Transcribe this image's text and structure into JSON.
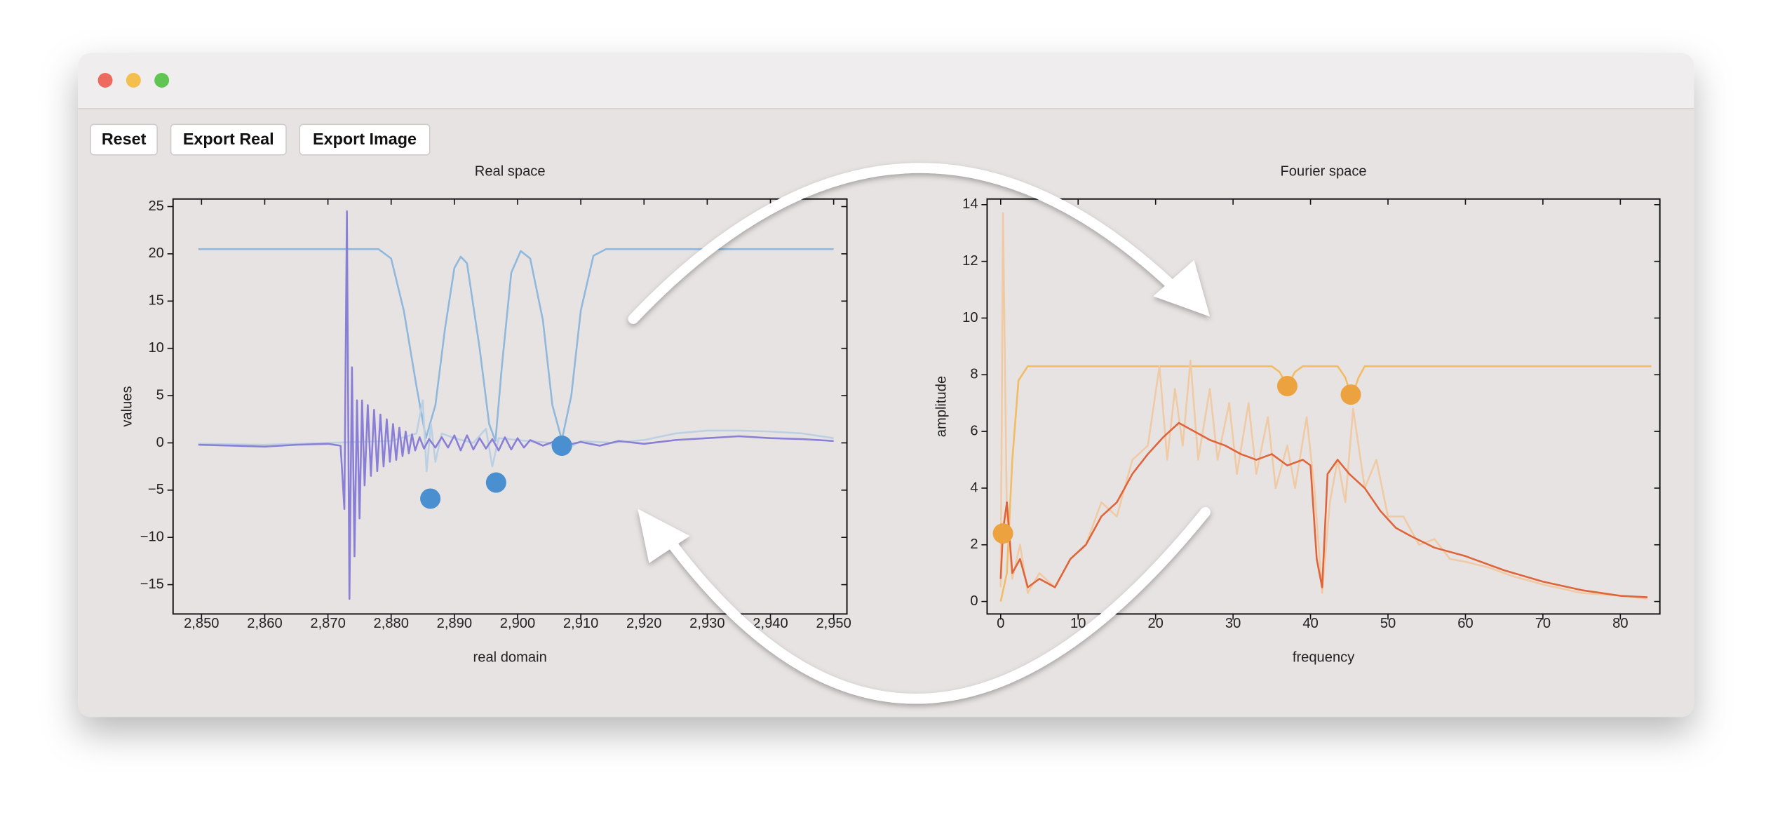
{
  "buttons": [
    "Reset",
    "Export Real",
    "Export Image"
  ],
  "chart_data": [
    {
      "type": "line",
      "title": "Real space",
      "xlabel": "real domain",
      "ylabel": "values",
      "xlim": [
        2845.5,
        2952.1
      ],
      "ylim": [
        -18.1,
        25.8
      ],
      "xticks": [
        {
          "value": 2850,
          "label": "2,850"
        },
        {
          "value": 2860,
          "label": "2,860"
        },
        {
          "value": 2870,
          "label": "2,870"
        },
        {
          "value": 2880,
          "label": "2,880"
        },
        {
          "value": 2890,
          "label": "2,890"
        },
        {
          "value": 2900,
          "label": "2,900"
        },
        {
          "value": 2910,
          "label": "2,910"
        },
        {
          "value": 2920,
          "label": "2,920"
        },
        {
          "value": 2930,
          "label": "2,930"
        },
        {
          "value": 2940,
          "label": "2,940"
        },
        {
          "value": 2950,
          "label": "2,950"
        }
      ],
      "yticks": [
        {
          "value": -15,
          "label": "−15"
        },
        {
          "value": -10,
          "label": "−10"
        },
        {
          "value": -5,
          "label": "−5"
        },
        0,
        5,
        10,
        15,
        20,
        25
      ],
      "series": [
        {
          "color": "#8fb8dc",
          "x": [
            2849.5,
            2878,
            2880,
            2882,
            2884,
            2885.5,
            2887,
            2888.5,
            2890,
            2891,
            2892,
            2894,
            2895.5,
            2896.5,
            2897.5,
            2899,
            2900.5,
            2902,
            2904,
            2905.5,
            2907,
            2908.5,
            2910,
            2912,
            2914,
            2950
          ],
          "values": [
            20.5,
            20.5,
            19.5,
            14,
            6,
            0.5,
            4,
            12,
            18.5,
            19.7,
            19,
            10,
            2,
            0.2,
            8,
            18,
            20.3,
            19.5,
            13,
            4,
            0.3,
            5,
            14,
            19.8,
            20.5,
            20.5
          ]
        },
        {
          "color": "#bcd0e4",
          "x": [
            2849.5,
            2860,
            2870,
            2880,
            2884,
            2885,
            2885.6,
            2886.3,
            2887,
            2888,
            2890,
            2893,
            2895,
            2896,
            2897,
            2900,
            2905,
            2907,
            2910,
            2915,
            2920,
            2925,
            2930,
            2935,
            2940,
            2945,
            2950
          ],
          "values": [
            -0.1,
            -0.2,
            0,
            0.2,
            1,
            4.5,
            -3,
            2,
            -2,
            1,
            0.5,
            0,
            1.5,
            -2.5,
            0.5,
            0.3,
            0,
            -1,
            0.2,
            0,
            0.3,
            1,
            1.3,
            1.3,
            1.2,
            1,
            0.5
          ]
        },
        {
          "color": "#8a7fd6",
          "x": [
            2849.5,
            2855,
            2860,
            2865,
            2870,
            2872,
            2872.6,
            2873,
            2873.4,
            2873.8,
            2874.2,
            2874.6,
            2875,
            2875.4,
            2875.8,
            2876.3,
            2876.8,
            2877.3,
            2877.8,
            2878.3,
            2878.8,
            2879.3,
            2879.8,
            2880.3,
            2880.8,
            2881.3,
            2881.8,
            2882.3,
            2882.8,
            2883.3,
            2883.8,
            2884.5,
            2885.2,
            2886,
            2887,
            2888,
            2889,
            2890,
            2891,
            2892,
            2893,
            2894,
            2895,
            2896,
            2897,
            2898,
            2899,
            2900,
            2901,
            2902,
            2904,
            2906,
            2908,
            2910,
            2913,
            2916,
            2920,
            2925,
            2930,
            2935,
            2940,
            2945,
            2950
          ],
          "values": [
            -0.2,
            -0.3,
            -0.4,
            -0.2,
            -0.1,
            -0.3,
            -7,
            24.5,
            -16.5,
            8,
            -12,
            4.5,
            -8,
            4.5,
            -4.5,
            4,
            -3.5,
            3.5,
            -3,
            3,
            -2.5,
            2.5,
            -2,
            2,
            -1.8,
            1.6,
            -1.4,
            1.2,
            -1.1,
            0.9,
            -0.8,
            0.6,
            -0.6,
            0.4,
            -0.5,
            0.6,
            -0.5,
            0.8,
            -0.8,
            0.8,
            -0.7,
            0.5,
            -0.6,
            0.4,
            -0.8,
            0.6,
            -0.7,
            0.5,
            -0.5,
            0.3,
            -0.3,
            0.2,
            -0.2,
            0.1,
            -0.3,
            0.2,
            -0.1,
            0.3,
            0.5,
            0.7,
            0.5,
            0.4,
            0.2
          ]
        },
        {
          "color": "#4a8fd0",
          "style": "marker",
          "x": [
            2886.2,
            2896.6,
            2907
          ],
          "values": [
            -5.9,
            -4.2,
            -0.3
          ]
        }
      ]
    },
    {
      "type": "line",
      "title": "Fourier space",
      "xlabel": "frequency",
      "ylabel": "amplitude",
      "xlim": [
        -1.75,
        85.1
      ],
      "ylim": [
        -0.44,
        14.2
      ],
      "xticks": [
        0,
        10,
        20,
        30,
        40,
        50,
        60,
        70,
        80
      ],
      "yticks": [
        0,
        2,
        4,
        6,
        8,
        10,
        12,
        14
      ],
      "series": [
        {
          "color": "#f2bc64",
          "x": [
            0,
            0.8,
            1.5,
            2.3,
            3.5,
            35,
            36,
            37,
            38,
            39,
            43.5,
            44.5,
            45.3,
            46.2,
            47,
            84
          ],
          "values": [
            0,
            1,
            5,
            7.8,
            8.3,
            8.3,
            8.1,
            7.6,
            8.1,
            8.3,
            8.3,
            7.9,
            7.2,
            7.9,
            8.3,
            8.3
          ]
        },
        {
          "color": "#f0caa4",
          "x": [
            0,
            0.3,
            0.8,
            1.5,
            2.5,
            3.5,
            5,
            7,
            9,
            11,
            13,
            15,
            17,
            19,
            20.5,
            21.5,
            22.5,
            23.5,
            24.5,
            25.5,
            27,
            28,
            29.5,
            30.5,
            32,
            33,
            34.5,
            35.5,
            37,
            38,
            39.5,
            40.5,
            41.5,
            42.5,
            43.5,
            44.5,
            45.5,
            47,
            48.5,
            50,
            52,
            54,
            56,
            58,
            60,
            63,
            66,
            70,
            75,
            80,
            83.5
          ],
          "values": [
            0.5,
            13.7,
            3,
            0.8,
            2,
            0.3,
            1,
            0.5,
            1.5,
            2,
            3.5,
            3,
            5,
            5.5,
            8.3,
            5,
            7.5,
            5.5,
            8.5,
            5,
            7.5,
            5,
            7,
            4.5,
            7,
            4.5,
            6.5,
            4,
            5.5,
            4,
            6.5,
            4,
            0.3,
            3.5,
            5,
            3.5,
            6.8,
            4,
            5,
            3,
            3,
            2,
            2.2,
            1.5,
            1.4,
            1.2,
            0.9,
            0.6,
            0.3,
            0.2,
            0.1
          ]
        },
        {
          "color": "#e0643a",
          "x": [
            0,
            0.3,
            0.8,
            1.5,
            2.5,
            3.5,
            5,
            7,
            9,
            11,
            13,
            15,
            17,
            19,
            21,
            23,
            25,
            27,
            29,
            31,
            33,
            35,
            37,
            39,
            40,
            40.8,
            41.5,
            42.2,
            43.5,
            45,
            47,
            49,
            51,
            53,
            56,
            60,
            65,
            70,
            75,
            80,
            83.5
          ],
          "values": [
            0.8,
            2.5,
            3.5,
            1,
            1.5,
            0.5,
            0.8,
            0.5,
            1.5,
            2,
            3,
            3.5,
            4.5,
            5.2,
            5.8,
            6.3,
            6,
            5.7,
            5.5,
            5.2,
            5,
            5.2,
            4.8,
            5,
            4.8,
            1.5,
            0.5,
            4.5,
            5,
            4.5,
            4,
            3.2,
            2.6,
            2.3,
            1.9,
            1.6,
            1.1,
            0.7,
            0.4,
            0.2,
            0.15
          ]
        },
        {
          "color": "#eca23f",
          "style": "marker",
          "x": [
            0.3,
            37,
            45.2
          ],
          "values": [
            2.4,
            7.6,
            7.3
          ]
        }
      ]
    }
  ]
}
